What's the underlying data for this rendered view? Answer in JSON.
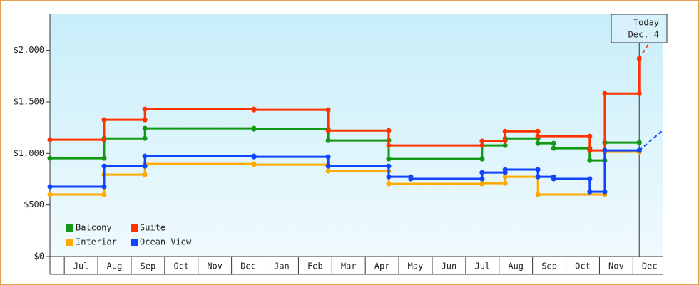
{
  "chart_data": {
    "type": "step",
    "xlim": [
      -0.43,
      17.91
    ],
    "xticks": [
      {
        "value": 0.5,
        "label": "Jul"
      },
      {
        "value": 1.5,
        "label": "Aug"
      },
      {
        "value": 2.5,
        "label": "Sep"
      },
      {
        "value": 3.5,
        "label": "Oct"
      },
      {
        "value": 4.5,
        "label": "Nov"
      },
      {
        "value": 5.5,
        "label": "Dec"
      },
      {
        "value": 6.5,
        "label": "Jan"
      },
      {
        "value": 7.5,
        "label": "Feb"
      },
      {
        "value": 8.5,
        "label": "Mar"
      },
      {
        "value": 9.5,
        "label": "Apr"
      },
      {
        "value": 10.5,
        "label": "May"
      },
      {
        "value": 11.5,
        "label": "Jun"
      },
      {
        "value": 12.5,
        "label": "Jul"
      },
      {
        "value": 13.5,
        "label": "Aug"
      },
      {
        "value": 14.5,
        "label": "Sep"
      },
      {
        "value": 15.5,
        "label": "Oct"
      },
      {
        "value": 16.5,
        "label": "Nov"
      },
      {
        "value": 17.5,
        "label": "Dec"
      }
    ],
    "ylim": [
      0,
      2350
    ],
    "yticks": [
      {
        "value": 0,
        "label": "$0"
      },
      {
        "value": 500,
        "label": "$500"
      },
      {
        "value": 1000,
        "label": "$1,000"
      },
      {
        "value": 1500,
        "label": "$1,500"
      },
      {
        "value": 2000,
        "label": "$2,000"
      }
    ],
    "today": {
      "x": 17.19,
      "label": [
        "Today",
        "Dec. 4"
      ]
    },
    "legend": "lower left",
    "series": [
      {
        "name": "Balcony",
        "color": "#119911",
        "x": [
          -0.43,
          1.19,
          2.41,
          5.67,
          7.89,
          9.7,
          12.49,
          13.18,
          14.16,
          14.63,
          15.71,
          16.16,
          17.19
        ],
        "values": [
          953,
          1146,
          1243,
          1236,
          1126,
          946,
          1077,
          1146,
          1098,
          1050,
          932,
          1105,
          1105
        ]
      },
      {
        "name": "Suite",
        "color": "#ff3300",
        "x": [
          -0.43,
          1.19,
          2.41,
          5.67,
          7.89,
          9.7,
          12.49,
          13.18,
          14.16,
          15.71,
          16.16,
          17.19
        ],
        "values": [
          1133,
          1326,
          1430,
          1423,
          1222,
          1077,
          1120,
          1215,
          1167,
          1029,
          1581,
          1920
        ],
        "projection": {
          "x": 17.91,
          "value": 2290
        }
      },
      {
        "name": "Interior",
        "color": "#ffaa00",
        "x": [
          -0.43,
          1.19,
          2.41,
          5.67,
          7.89,
          9.7,
          12.49,
          13.18,
          14.16,
          16.16,
          17.19
        ],
        "values": [
          601,
          794,
          898,
          891,
          829,
          704,
          711,
          773,
          601,
          1015,
          1015
        ]
      },
      {
        "name": "Ocean View",
        "color": "#1144ff",
        "x": [
          -0.43,
          1.19,
          2.41,
          5.67,
          7.89,
          9.7,
          10.36,
          12.49,
          13.18,
          14.16,
          14.63,
          15.71,
          16.16,
          17.19
        ],
        "values": [
          677,
          877,
          974,
          967,
          877,
          773,
          753,
          815,
          843,
          773,
          753,
          628,
          1029,
          1029
        ],
        "projection": {
          "x": 17.91,
          "value": 1229
        }
      }
    ]
  }
}
